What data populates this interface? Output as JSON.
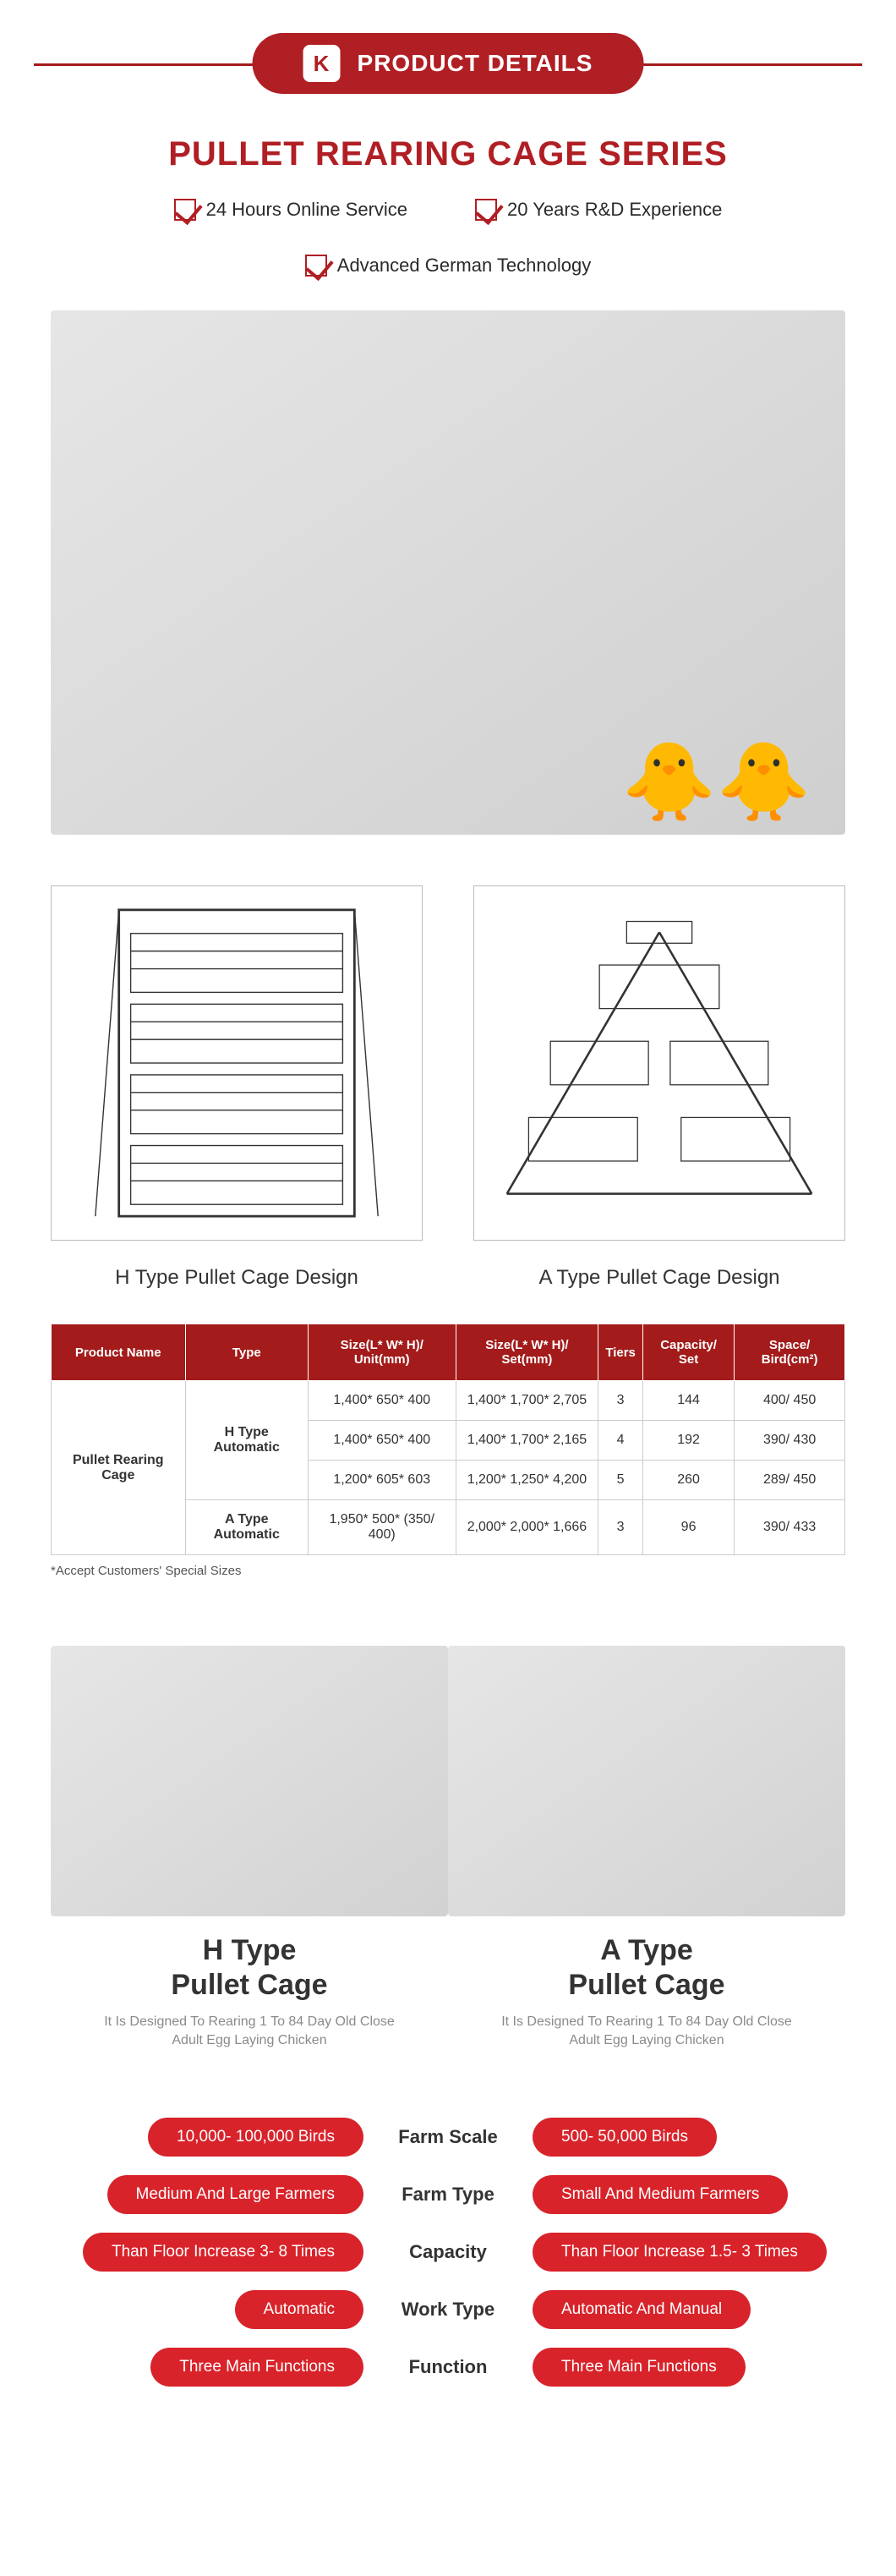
{
  "header": {
    "badge": "PRODUCT DETAILS",
    "icon_letter": "K"
  },
  "series_title": "PULLET REARING CAGE SERIES",
  "features": [
    "24 Hours Online Service",
    "20 Years R&D Experience",
    "Advanced German Technology"
  ],
  "designs": {
    "left_label": "H Type Pullet Cage Design",
    "right_label": "A Type Pullet Cage Design"
  },
  "table": {
    "headers": [
      "Product Name",
      "Type",
      "Size(L* W* H)/ Unit(mm)",
      "Size(L* W* H)/ Set(mm)",
      "Tiers",
      "Capacity/ Set",
      "Space/ Bird(cm²)"
    ],
    "product_name": "Pullet Rearing Cage",
    "h_type_label": "H Type Automatic",
    "a_type_label": "A Type Automatic",
    "rows": [
      [
        "1,400* 650* 400",
        "1,400* 1,700* 2,705",
        "3",
        "144",
        "400/ 450"
      ],
      [
        "1,400* 650* 400",
        "1,400* 1,700* 2,165",
        "4",
        "192",
        "390/ 430"
      ],
      [
        "1,200* 605* 603",
        "1,200* 1,250* 4,200",
        "5",
        "260",
        "289/ 450"
      ],
      [
        "1,950* 500* (350/ 400)",
        "2,000* 2,000* 1,666",
        "3",
        "96",
        "390/ 433"
      ]
    ],
    "note": "*Accept Customers' Special Sizes"
  },
  "compare": {
    "left": {
      "title_l1": "H Type",
      "title_l2": "Pullet  Cage",
      "sub": "It Is Designed To Rearing 1 To 84 Day Old Close Adult Egg Laying Chicken"
    },
    "right": {
      "title_l1": "A Type",
      "title_l2": "Pullet  Cage",
      "sub": "It Is Designed To Rearing 1 To 84 Day Old Close Adult Egg Laying Chicken"
    },
    "rows": [
      {
        "left": "10,000- 100,000 Birds",
        "mid": "Farm Scale",
        "right": "500- 50,000 Birds"
      },
      {
        "left": "Medium And Large Farmers",
        "mid": "Farm Type",
        "right": "Small And Medium Farmers"
      },
      {
        "left": "Than Floor Increase 3- 8 Times",
        "mid": "Capacity",
        "right": "Than Floor Increase 1.5- 3 Times"
      },
      {
        "left": "Automatic",
        "mid": "Work Type",
        "right": "Automatic And Manual"
      },
      {
        "left": "Three Main Functions",
        "mid": "Function",
        "right": "Three Main Functions"
      }
    ]
  },
  "colors": {
    "brand": "#b01f24",
    "header_line": "#a31b1b",
    "pill": "#d8232a",
    "text": "#333333",
    "subtext": "#8a8a8a"
  }
}
